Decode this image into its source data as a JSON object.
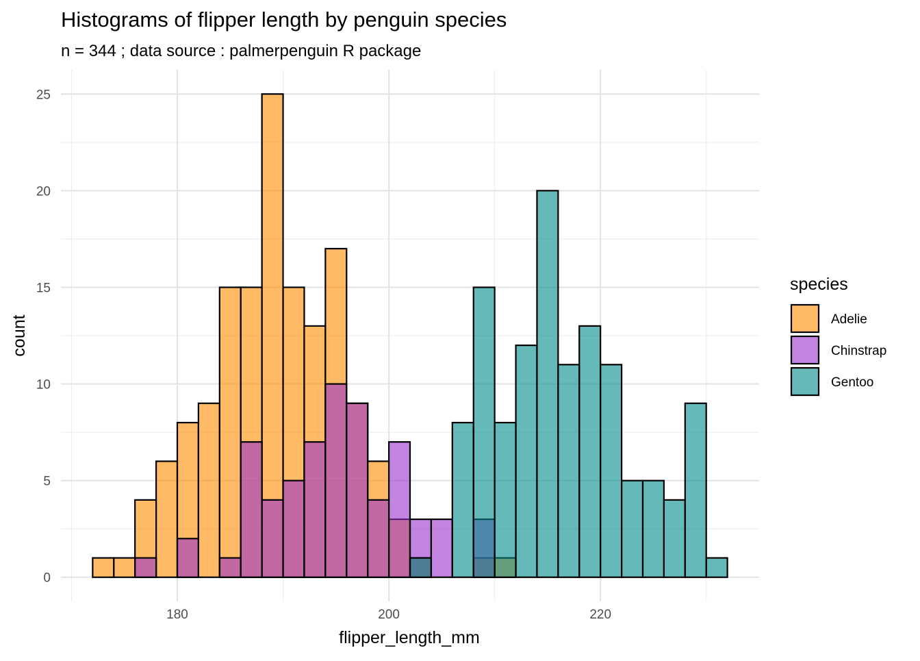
{
  "chart_data": {
    "type": "histogram",
    "title": "Histograms of flipper length by penguin species",
    "subtitle": "n = 344 ; data source : palmerpenguin R package",
    "xlabel": "flipper_length_mm",
    "ylabel": "count",
    "xlim": [
      169,
      235
    ],
    "ylim": [
      -1.25,
      26.25
    ],
    "x_ticks": [
      180,
      200,
      220
    ],
    "y_ticks": [
      0,
      5,
      10,
      15,
      20,
      25
    ],
    "x_minor_ticks": [
      170,
      190,
      210,
      230
    ],
    "y_minor_ticks": [
      2.5,
      7.5,
      12.5,
      17.5,
      22.5
    ],
    "grid": true,
    "bin_width": 2,
    "bar_opacity": 0.6,
    "legend": {
      "title": "species",
      "position": "right",
      "entries": [
        "Adelie",
        "Chinstrap",
        "Gentoo"
      ]
    },
    "series": [
      {
        "name": "Adelie",
        "color": "#FF8C00",
        "bins": [
          {
            "x0": 172,
            "x1": 174,
            "count": 1
          },
          {
            "x0": 174,
            "x1": 176,
            "count": 1
          },
          {
            "x0": 176,
            "x1": 178,
            "count": 4
          },
          {
            "x0": 178,
            "x1": 180,
            "count": 6
          },
          {
            "x0": 180,
            "x1": 182,
            "count": 8
          },
          {
            "x0": 182,
            "x1": 184,
            "count": 9
          },
          {
            "x0": 184,
            "x1": 186,
            "count": 15
          },
          {
            "x0": 186,
            "x1": 188,
            "count": 15
          },
          {
            "x0": 188,
            "x1": 190,
            "count": 25
          },
          {
            "x0": 190,
            "x1": 192,
            "count": 15
          },
          {
            "x0": 192,
            "x1": 194,
            "count": 13
          },
          {
            "x0": 194,
            "x1": 196,
            "count": 17
          },
          {
            "x0": 196,
            "x1": 198,
            "count": 9
          },
          {
            "x0": 198,
            "x1": 200,
            "count": 6
          },
          {
            "x0": 200,
            "x1": 202,
            "count": 3
          },
          {
            "x0": 202,
            "x1": 204,
            "count": 1
          },
          {
            "x0": 208,
            "x1": 210,
            "count": 1
          },
          {
            "x0": 210,
            "x1": 212,
            "count": 1
          }
        ]
      },
      {
        "name": "Chinstrap",
        "color": "#9932CC",
        "bins": [
          {
            "x0": 176,
            "x1": 178,
            "count": 1
          },
          {
            "x0": 180,
            "x1": 182,
            "count": 2
          },
          {
            "x0": 184,
            "x1": 186,
            "count": 1
          },
          {
            "x0": 186,
            "x1": 188,
            "count": 7
          },
          {
            "x0": 188,
            "x1": 190,
            "count": 4
          },
          {
            "x0": 190,
            "x1": 192,
            "count": 5
          },
          {
            "x0": 192,
            "x1": 194,
            "count": 7
          },
          {
            "x0": 194,
            "x1": 196,
            "count": 10
          },
          {
            "x0": 196,
            "x1": 198,
            "count": 9
          },
          {
            "x0": 198,
            "x1": 200,
            "count": 4
          },
          {
            "x0": 200,
            "x1": 202,
            "count": 7
          },
          {
            "x0": 202,
            "x1": 204,
            "count": 3
          },
          {
            "x0": 204,
            "x1": 206,
            "count": 3
          },
          {
            "x0": 208,
            "x1": 210,
            "count": 3
          }
        ]
      },
      {
        "name": "Gentoo",
        "color": "#008B8B",
        "bins": [
          {
            "x0": 202,
            "x1": 204,
            "count": 1
          },
          {
            "x0": 206,
            "x1": 208,
            "count": 8
          },
          {
            "x0": 208,
            "x1": 210,
            "count": 15
          },
          {
            "x0": 210,
            "x1": 212,
            "count": 8
          },
          {
            "x0": 212,
            "x1": 214,
            "count": 12
          },
          {
            "x0": 214,
            "x1": 216,
            "count": 20
          },
          {
            "x0": 216,
            "x1": 218,
            "count": 11
          },
          {
            "x0": 218,
            "x1": 220,
            "count": 13
          },
          {
            "x0": 220,
            "x1": 222,
            "count": 11
          },
          {
            "x0": 222,
            "x1": 224,
            "count": 5
          },
          {
            "x0": 224,
            "x1": 226,
            "count": 5
          },
          {
            "x0": 226,
            "x1": 228,
            "count": 4
          },
          {
            "x0": 228,
            "x1": 230,
            "count": 9
          },
          {
            "x0": 230,
            "x1": 232,
            "count": 1
          }
        ]
      }
    ]
  }
}
